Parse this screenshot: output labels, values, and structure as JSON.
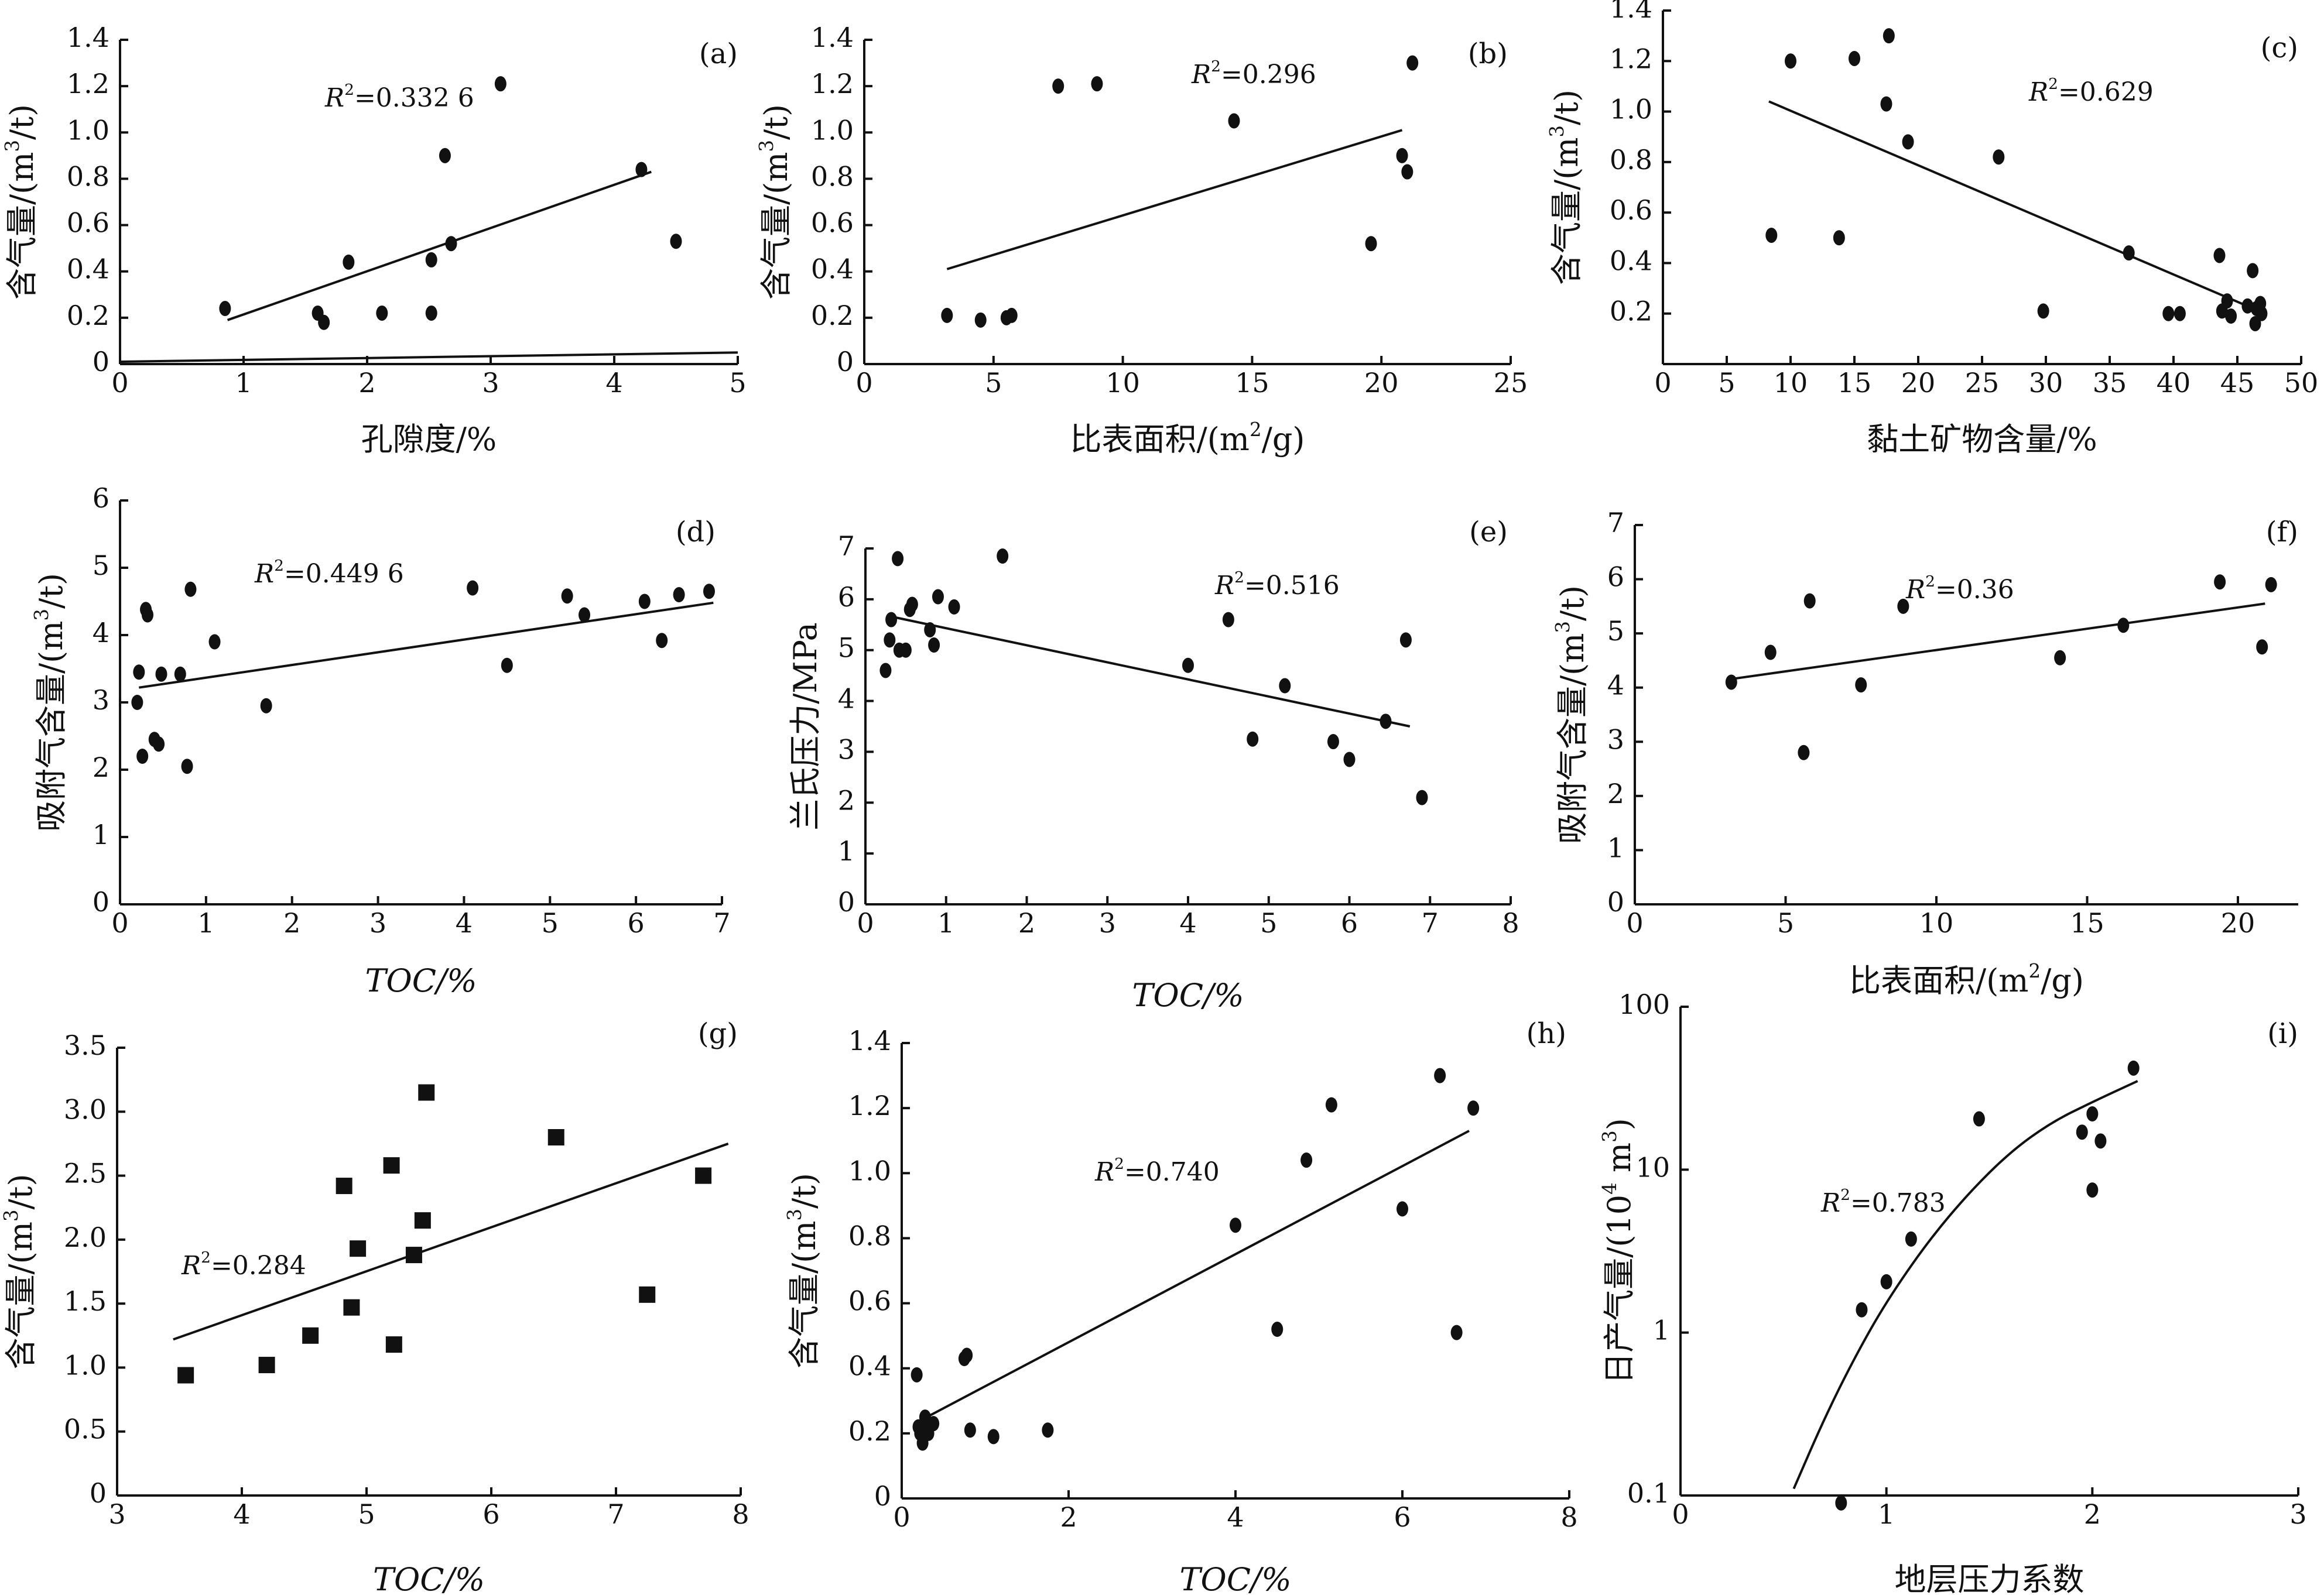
{
  "chart_data": [
    {
      "id": "a",
      "type": "scatter",
      "tag": "(a)",
      "xlabel": "孔隙度/%",
      "ylabel": "含气量/(m³/t)",
      "xlabel_italic": false,
      "xlim": [
        0,
        5
      ],
      "ylim": [
        0,
        1.4
      ],
      "xticks": [
        0,
        1,
        2,
        3,
        4,
        5
      ],
      "yticks": [
        0,
        0.2,
        0.4,
        0.6,
        0.8,
        1.0,
        1.2,
        1.4
      ],
      "xtick_labels": [
        "0",
        "1",
        "2",
        "3",
        "4",
        "5"
      ],
      "ytick_labels": [
        "0",
        "0.2",
        "0.4",
        "0.6",
        "0.8",
        "1.0",
        "1.2",
        "1.4"
      ],
      "r2": "R²=0.332 6",
      "marker": "circle",
      "points": [
        [
          0.85,
          0.24
        ],
        [
          1.6,
          0.22
        ],
        [
          1.65,
          0.18
        ],
        [
          1.85,
          0.44
        ],
        [
          2.12,
          0.22
        ],
        [
          2.52,
          0.22
        ],
        [
          2.52,
          0.45
        ],
        [
          2.63,
          0.9
        ],
        [
          2.68,
          0.52
        ],
        [
          3.08,
          1.21
        ],
        [
          4.22,
          0.84
        ],
        [
          4.5,
          0.53
        ]
      ],
      "fit": [
        [
          0.87,
          0.19
        ],
        [
          4.3,
          0.83
        ]
      ],
      "extra_line": [
        [
          0.0,
          0.01
        ],
        [
          5.0,
          0.05
        ]
      ]
    },
    {
      "id": "b",
      "type": "scatter",
      "tag": "(b)",
      "xlabel": "比表面积/(m²/g)",
      "ylabel": "含气量/(m³/t)",
      "xlabel_italic": false,
      "xlim": [
        0,
        25
      ],
      "ylim": [
        0,
        1.4
      ],
      "xticks": [
        0,
        5,
        10,
        15,
        20,
        25
      ],
      "yticks": [
        0,
        0.2,
        0.4,
        0.6,
        0.8,
        1.0,
        1.2,
        1.4
      ],
      "xtick_labels": [
        "0",
        "5",
        "10",
        "15",
        "20",
        "25"
      ],
      "ytick_labels": [
        "0",
        "0.2",
        "0.4",
        "0.6",
        "0.8",
        "1.0",
        "1.2",
        "1.4"
      ],
      "r2": "R²=0.296",
      "marker": "circle",
      "points": [
        [
          3.2,
          0.21
        ],
        [
          4.5,
          0.19
        ],
        [
          5.5,
          0.2
        ],
        [
          5.7,
          0.21
        ],
        [
          7.5,
          1.2
        ],
        [
          9.0,
          1.21
        ],
        [
          14.3,
          1.05
        ],
        [
          19.6,
          0.52
        ],
        [
          20.8,
          0.9
        ],
        [
          21.0,
          0.83
        ],
        [
          21.2,
          1.3
        ]
      ],
      "fit": [
        [
          3.2,
          0.41
        ],
        [
          20.8,
          1.01
        ]
      ]
    },
    {
      "id": "c",
      "type": "scatter",
      "tag": "(c)",
      "xlabel": "黏土矿物含量/%",
      "ylabel": "含气量/(m³/t)",
      "xlabel_italic": false,
      "xlim": [
        0,
        50
      ],
      "ylim": [
        0,
        1.4
      ],
      "xticks": [
        0,
        5,
        10,
        15,
        20,
        25,
        30,
        35,
        40,
        45,
        50
      ],
      "yticks": [
        0.2,
        0.4,
        0.6,
        0.8,
        1.0,
        1.2,
        1.4
      ],
      "xtick_labels": [
        "0",
        "5",
        "10",
        "15",
        "20",
        "25",
        "30",
        "35",
        "40",
        "45",
        "50"
      ],
      "ytick_labels": [
        "0.2",
        "0.4",
        "0.6",
        "0.8",
        "1.0",
        "1.2",
        "1.4"
      ],
      "r2": "R²=0.629",
      "marker": "circle",
      "points": [
        [
          8.5,
          0.51
        ],
        [
          10.0,
          1.2
        ],
        [
          13.8,
          0.5
        ],
        [
          15.0,
          1.21
        ],
        [
          17.5,
          1.03
        ],
        [
          17.7,
          1.3
        ],
        [
          19.2,
          0.88
        ],
        [
          26.3,
          0.82
        ],
        [
          29.8,
          0.21
        ],
        [
          36.5,
          0.44
        ],
        [
          39.6,
          0.2
        ],
        [
          40.5,
          0.2
        ],
        [
          43.6,
          0.43
        ],
        [
          43.8,
          0.21
        ],
        [
          44.2,
          0.25
        ],
        [
          44.5,
          0.19
        ],
        [
          45.8,
          0.23
        ],
        [
          46.2,
          0.37
        ],
        [
          46.4,
          0.16
        ],
        [
          46.5,
          0.22
        ],
        [
          46.8,
          0.24
        ],
        [
          46.9,
          0.2
        ]
      ],
      "fit": [
        [
          8.3,
          1.04
        ],
        [
          46.7,
          0.21
        ]
      ]
    },
    {
      "id": "d",
      "type": "scatter",
      "tag": "(d)",
      "xlabel": "TOC/%",
      "ylabel": "吸附气含量/(m³/t)",
      "xlabel_italic": true,
      "xlim": [
        0,
        7
      ],
      "ylim": [
        0,
        6
      ],
      "xticks": [
        0,
        1,
        2,
        3,
        4,
        5,
        6,
        7
      ],
      "yticks": [
        0,
        1,
        2,
        3,
        4,
        5,
        6
      ],
      "xtick_labels": [
        "0",
        "1",
        "2",
        "3",
        "4",
        "5",
        "6",
        "7"
      ],
      "ytick_labels": [
        "0",
        "1",
        "2",
        "3",
        "4",
        "5",
        "6"
      ],
      "r2": "R²=0.449 6",
      "marker": "circle",
      "points": [
        [
          0.2,
          3.0
        ],
        [
          0.22,
          3.45
        ],
        [
          0.26,
          2.2
        ],
        [
          0.3,
          4.38
        ],
        [
          0.32,
          4.3
        ],
        [
          0.4,
          2.45
        ],
        [
          0.45,
          2.38
        ],
        [
          0.48,
          3.42
        ],
        [
          0.7,
          3.42
        ],
        [
          0.78,
          2.05
        ],
        [
          0.82,
          4.68
        ],
        [
          1.1,
          3.9
        ],
        [
          1.7,
          2.95
        ],
        [
          4.1,
          4.7
        ],
        [
          4.5,
          3.55
        ],
        [
          5.2,
          4.58
        ],
        [
          5.4,
          4.3
        ],
        [
          6.1,
          4.5
        ],
        [
          6.3,
          3.92
        ],
        [
          6.5,
          4.6
        ],
        [
          6.85,
          4.65
        ]
      ],
      "fit": [
        [
          0.22,
          3.22
        ],
        [
          6.9,
          4.48
        ]
      ]
    },
    {
      "id": "e",
      "type": "scatter",
      "tag": "(e)",
      "xlabel": "TOC/%",
      "ylabel": "兰氏压力/MPa",
      "xlabel_italic": true,
      "xlim": [
        0,
        8
      ],
      "ylim": [
        0,
        7
      ],
      "xticks": [
        0,
        1,
        2,
        3,
        4,
        5,
        6,
        7,
        8
      ],
      "yticks": [
        0,
        1,
        2,
        3,
        4,
        5,
        6,
        7
      ],
      "xtick_labels": [
        "0",
        "1",
        "2",
        "3",
        "4",
        "5",
        "6",
        "7",
        "8"
      ],
      "ytick_labels": [
        "0",
        "1",
        "2",
        "3",
        "4",
        "5",
        "6",
        "7"
      ],
      "r2": "R²=0.516",
      "marker": "circle",
      "points": [
        [
          0.25,
          4.6
        ],
        [
          0.3,
          5.2
        ],
        [
          0.32,
          5.6
        ],
        [
          0.4,
          6.8
        ],
        [
          0.42,
          5.0
        ],
        [
          0.5,
          5.0
        ],
        [
          0.55,
          5.8
        ],
        [
          0.58,
          5.9
        ],
        [
          0.8,
          5.4
        ],
        [
          0.85,
          5.1
        ],
        [
          0.9,
          6.05
        ],
        [
          1.1,
          5.85
        ],
        [
          1.7,
          6.85
        ],
        [
          4.0,
          4.7
        ],
        [
          4.5,
          5.6
        ],
        [
          4.8,
          3.25
        ],
        [
          5.2,
          4.3
        ],
        [
          5.8,
          3.2
        ],
        [
          6.0,
          2.85
        ],
        [
          6.45,
          3.6
        ],
        [
          6.7,
          5.2
        ],
        [
          6.9,
          2.1
        ]
      ],
      "fit": [
        [
          0.35,
          5.65
        ],
        [
          6.75,
          3.5
        ]
      ]
    },
    {
      "id": "f",
      "type": "scatter",
      "tag": "(f)",
      "xlabel": "比表面积/(m²/g)",
      "ylabel": "吸附气含量/(m³/t)",
      "xlabel_italic": false,
      "xlim": [
        0,
        22
      ],
      "ylim": [
        0,
        7
      ],
      "xticks": [
        0,
        5,
        10,
        15,
        20
      ],
      "yticks": [
        0,
        1,
        2,
        3,
        4,
        5,
        6,
        7
      ],
      "xtick_labels": [
        "0",
        "5",
        "10",
        "15",
        "20"
      ],
      "ytick_labels": [
        "0",
        "1",
        "2",
        "3",
        "4",
        "5",
        "6",
        "7"
      ],
      "r2": "R²=0.36",
      "marker": "circle",
      "points": [
        [
          3.2,
          4.1
        ],
        [
          4.5,
          4.65
        ],
        [
          5.6,
          2.8
        ],
        [
          5.8,
          5.6
        ],
        [
          7.5,
          4.05
        ],
        [
          8.9,
          5.5
        ],
        [
          14.1,
          4.55
        ],
        [
          16.2,
          5.15
        ],
        [
          19.4,
          5.95
        ],
        [
          20.8,
          4.75
        ],
        [
          21.1,
          5.9
        ]
      ],
      "fit": [
        [
          3.1,
          4.15
        ],
        [
          20.9,
          5.55
        ]
      ]
    },
    {
      "id": "g",
      "type": "scatter",
      "tag": "(g)",
      "xlabel": "TOC/%",
      "ylabel": "含气量/(m³/t)",
      "xlabel_italic": true,
      "xlim": [
        3,
        8
      ],
      "ylim": [
        0,
        3.5
      ],
      "xticks": [
        3,
        4,
        5,
        6,
        7,
        8
      ],
      "yticks": [
        0,
        0.5,
        1.0,
        1.5,
        2.0,
        2.5,
        3.0,
        3.5
      ],
      "xtick_labels": [
        "3",
        "4",
        "5",
        "6",
        "7",
        "8"
      ],
      "ytick_labels": [
        "0",
        "0.5",
        "1.0",
        "1.5",
        "2.0",
        "2.5",
        "3.0",
        "3.5"
      ],
      "r2": "R²=0.284",
      "marker": "square",
      "points": [
        [
          3.55,
          0.94
        ],
        [
          4.2,
          1.02
        ],
        [
          4.55,
          1.25
        ],
        [
          4.82,
          2.42
        ],
        [
          4.88,
          1.47
        ],
        [
          4.93,
          1.93
        ],
        [
          5.2,
          2.58
        ],
        [
          5.22,
          1.18
        ],
        [
          5.38,
          1.88
        ],
        [
          5.45,
          2.15
        ],
        [
          5.48,
          3.15
        ],
        [
          6.52,
          2.8
        ],
        [
          7.25,
          1.57
        ],
        [
          7.7,
          2.5
        ]
      ],
      "fit": [
        [
          3.45,
          1.22
        ],
        [
          7.9,
          2.75
        ]
      ]
    },
    {
      "id": "h",
      "type": "scatter",
      "tag": "(h)",
      "xlabel": "TOC/%",
      "ylabel": "含气量/(m³/t)",
      "xlabel_italic": true,
      "xlim": [
        0,
        8
      ],
      "ylim": [
        0,
        1.4
      ],
      "xticks": [
        0,
        2,
        4,
        6,
        8
      ],
      "yticks": [
        0,
        0.2,
        0.4,
        0.6,
        0.8,
        1.0,
        1.2,
        1.4
      ],
      "xtick_labels": [
        "0",
        "2",
        "4",
        "6",
        "8"
      ],
      "ytick_labels": [
        "0",
        "0.2",
        "0.4",
        "0.6",
        "0.8",
        "1.0",
        "1.2",
        "1.4"
      ],
      "r2": "R²=0.740",
      "marker": "circle",
      "points": [
        [
          0.18,
          0.38
        ],
        [
          0.2,
          0.22
        ],
        [
          0.22,
          0.2
        ],
        [
          0.25,
          0.17
        ],
        [
          0.28,
          0.25
        ],
        [
          0.3,
          0.22
        ],
        [
          0.32,
          0.2
        ],
        [
          0.38,
          0.23
        ],
        [
          0.75,
          0.43
        ],
        [
          0.78,
          0.44
        ],
        [
          0.82,
          0.21
        ],
        [
          1.1,
          0.19
        ],
        [
          1.75,
          0.21
        ],
        [
          4.0,
          0.84
        ],
        [
          4.5,
          0.52
        ],
        [
          4.85,
          1.04
        ],
        [
          5.15,
          1.21
        ],
        [
          6.0,
          0.89
        ],
        [
          6.45,
          1.3
        ],
        [
          6.65,
          0.51
        ],
        [
          6.85,
          1.2
        ]
      ],
      "fit": [
        [
          0.3,
          0.25
        ],
        [
          6.8,
          1.13
        ]
      ]
    },
    {
      "id": "i",
      "type": "scatter",
      "tag": "(i)",
      "xlabel": "地层压力系数",
      "ylabel": "日产气量/(10⁴ m³)",
      "xlabel_italic": false,
      "xlim": [
        0,
        3
      ],
      "ylim": [
        0.1,
        100
      ],
      "yscale": "log",
      "xticks": [
        0,
        1,
        2,
        3
      ],
      "yticks": [
        0.1,
        1,
        10,
        100
      ],
      "xtick_labels": [
        "0",
        "1",
        "2",
        "3"
      ],
      "ytick_labels": [
        "0.1",
        "1",
        "10",
        "100"
      ],
      "r2": "R²=0.783",
      "marker": "circle",
      "points": [
        [
          0.78,
          0.09
        ],
        [
          0.88,
          1.38
        ],
        [
          1.0,
          2.05
        ],
        [
          1.12,
          3.75
        ],
        [
          1.45,
          20.5
        ],
        [
          1.95,
          17.0
        ],
        [
          2.0,
          22.0
        ],
        [
          2.0,
          7.5
        ],
        [
          2.04,
          15.0
        ],
        [
          2.2,
          42.0
        ]
      ],
      "fit_curve": [
        [
          0.55,
          0.11
        ],
        [
          0.7,
          0.3
        ],
        [
          0.85,
          0.72
        ],
        [
          1.0,
          1.55
        ],
        [
          1.2,
          3.6
        ],
        [
          1.4,
          7.2
        ],
        [
          1.6,
          12.8
        ],
        [
          1.8,
          19.5
        ],
        [
          2.0,
          26.0
        ],
        [
          2.22,
          35.0
        ]
      ]
    }
  ]
}
